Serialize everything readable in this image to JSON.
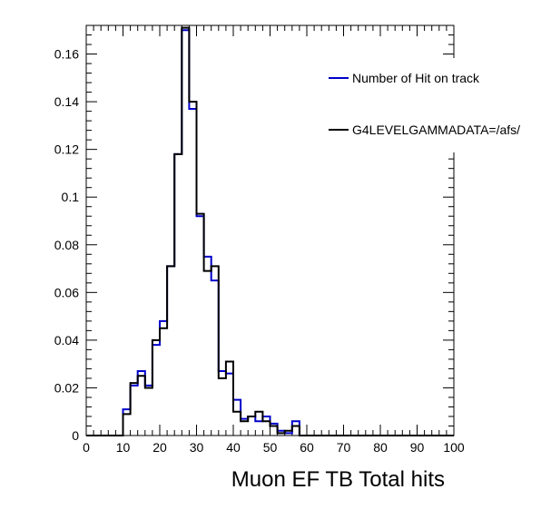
{
  "chart_data": {
    "type": "line",
    "title": "",
    "xlabel": "Muon EF TB Total hits",
    "ylabel": "",
    "xlim": [
      0,
      100
    ],
    "ylim": [
      0,
      0.172
    ],
    "x_ticks": [
      "0",
      "10",
      "20",
      "30",
      "40",
      "50",
      "60",
      "70",
      "80",
      "90",
      "100"
    ],
    "y_ticks": [
      "0",
      "0.02",
      "0.04",
      "0.06",
      "0.08",
      "0.1",
      "0.12",
      "0.14",
      "0.16"
    ],
    "x_tick_values": [
      0,
      10,
      20,
      30,
      40,
      50,
      60,
      70,
      80,
      90,
      100
    ],
    "y_tick_values": [
      0,
      0.02,
      0.04,
      0.06,
      0.08,
      0.1,
      0.12,
      0.14,
      0.16
    ],
    "bin_width": 2,
    "bin_edges_start": 0,
    "legend_position": "top-right",
    "grid": false,
    "series": [
      {
        "name": "Number of Hit on track",
        "color": "#0000cc",
        "values": [
          0,
          0,
          0,
          0,
          0,
          0.011,
          0.021,
          0.027,
          0.021,
          0.038,
          0.048,
          0.071,
          0.118,
          0.17,
          0.137,
          0.092,
          0.075,
          0.065,
          0.027,
          0.026,
          0.015,
          0.007,
          0.008,
          0.006,
          0.008,
          0.005,
          0.002,
          0.001,
          0.006,
          0,
          0,
          0,
          0,
          0,
          0,
          0,
          0,
          0,
          0,
          0,
          0,
          0,
          0,
          0,
          0,
          0,
          0,
          0,
          0,
          0
        ]
      },
      {
        "name": "G4LEVELGAMMADATA=/afs/",
        "color": "#000000",
        "values": [
          0,
          0,
          0,
          0,
          0,
          0.009,
          0.022,
          0.025,
          0.02,
          0.04,
          0.045,
          0.071,
          0.118,
          0.171,
          0.14,
          0.093,
          0.069,
          0.071,
          0.024,
          0.031,
          0.01,
          0.006,
          0.008,
          0.01,
          0.006,
          0.004,
          0.001,
          0.002,
          0.004,
          0,
          0,
          0,
          0,
          0,
          0,
          0,
          0,
          0,
          0,
          0,
          0,
          0,
          0,
          0,
          0,
          0,
          0,
          0,
          0,
          0
        ]
      }
    ]
  }
}
